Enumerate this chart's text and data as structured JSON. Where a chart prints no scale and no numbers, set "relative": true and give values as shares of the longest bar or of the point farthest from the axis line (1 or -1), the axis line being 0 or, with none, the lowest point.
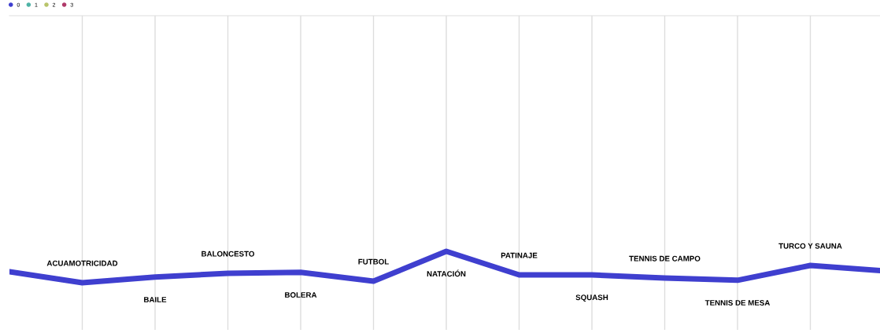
{
  "chart_data": {
    "type": "line",
    "relative": true,
    "grid": "x",
    "legend": "top left",
    "marker": "none",
    "categories": [
      null,
      "ACUAMOTRICIDAD",
      "BAILE",
      "BALONCESTO",
      "BOLERA",
      "FUTBOL",
      "NATACIÓN",
      "PATINAJE",
      "SQUASH",
      "TENNIS DE CAMPO",
      "TENNIS DE MESA",
      "TURCO Y SAUNA",
      null
    ],
    "series": [
      {
        "name": "0",
        "color": "#3f3fcf",
        "values": [
          0.35,
          0,
          0.18,
          0.3,
          0.33,
          0.05,
          1,
          0.25,
          0.25,
          0.15,
          0.08,
          0.55,
          0.38
        ]
      },
      {
        "name": "1",
        "color": "#4fb3a6",
        "values": [
          null,
          null,
          null,
          null,
          null,
          null,
          null,
          null,
          null,
          null,
          null,
          null,
          null
        ]
      },
      {
        "name": "2",
        "color": "#b8c46a",
        "values": [
          null,
          null,
          null,
          null,
          null,
          null,
          null,
          null,
          null,
          null,
          null,
          null,
          null
        ]
      },
      {
        "name": "3",
        "color": "#b03a6a",
        "values": [
          null,
          null,
          null,
          null,
          null,
          null,
          null,
          null,
          null,
          null,
          null,
          null,
          null
        ]
      }
    ]
  }
}
